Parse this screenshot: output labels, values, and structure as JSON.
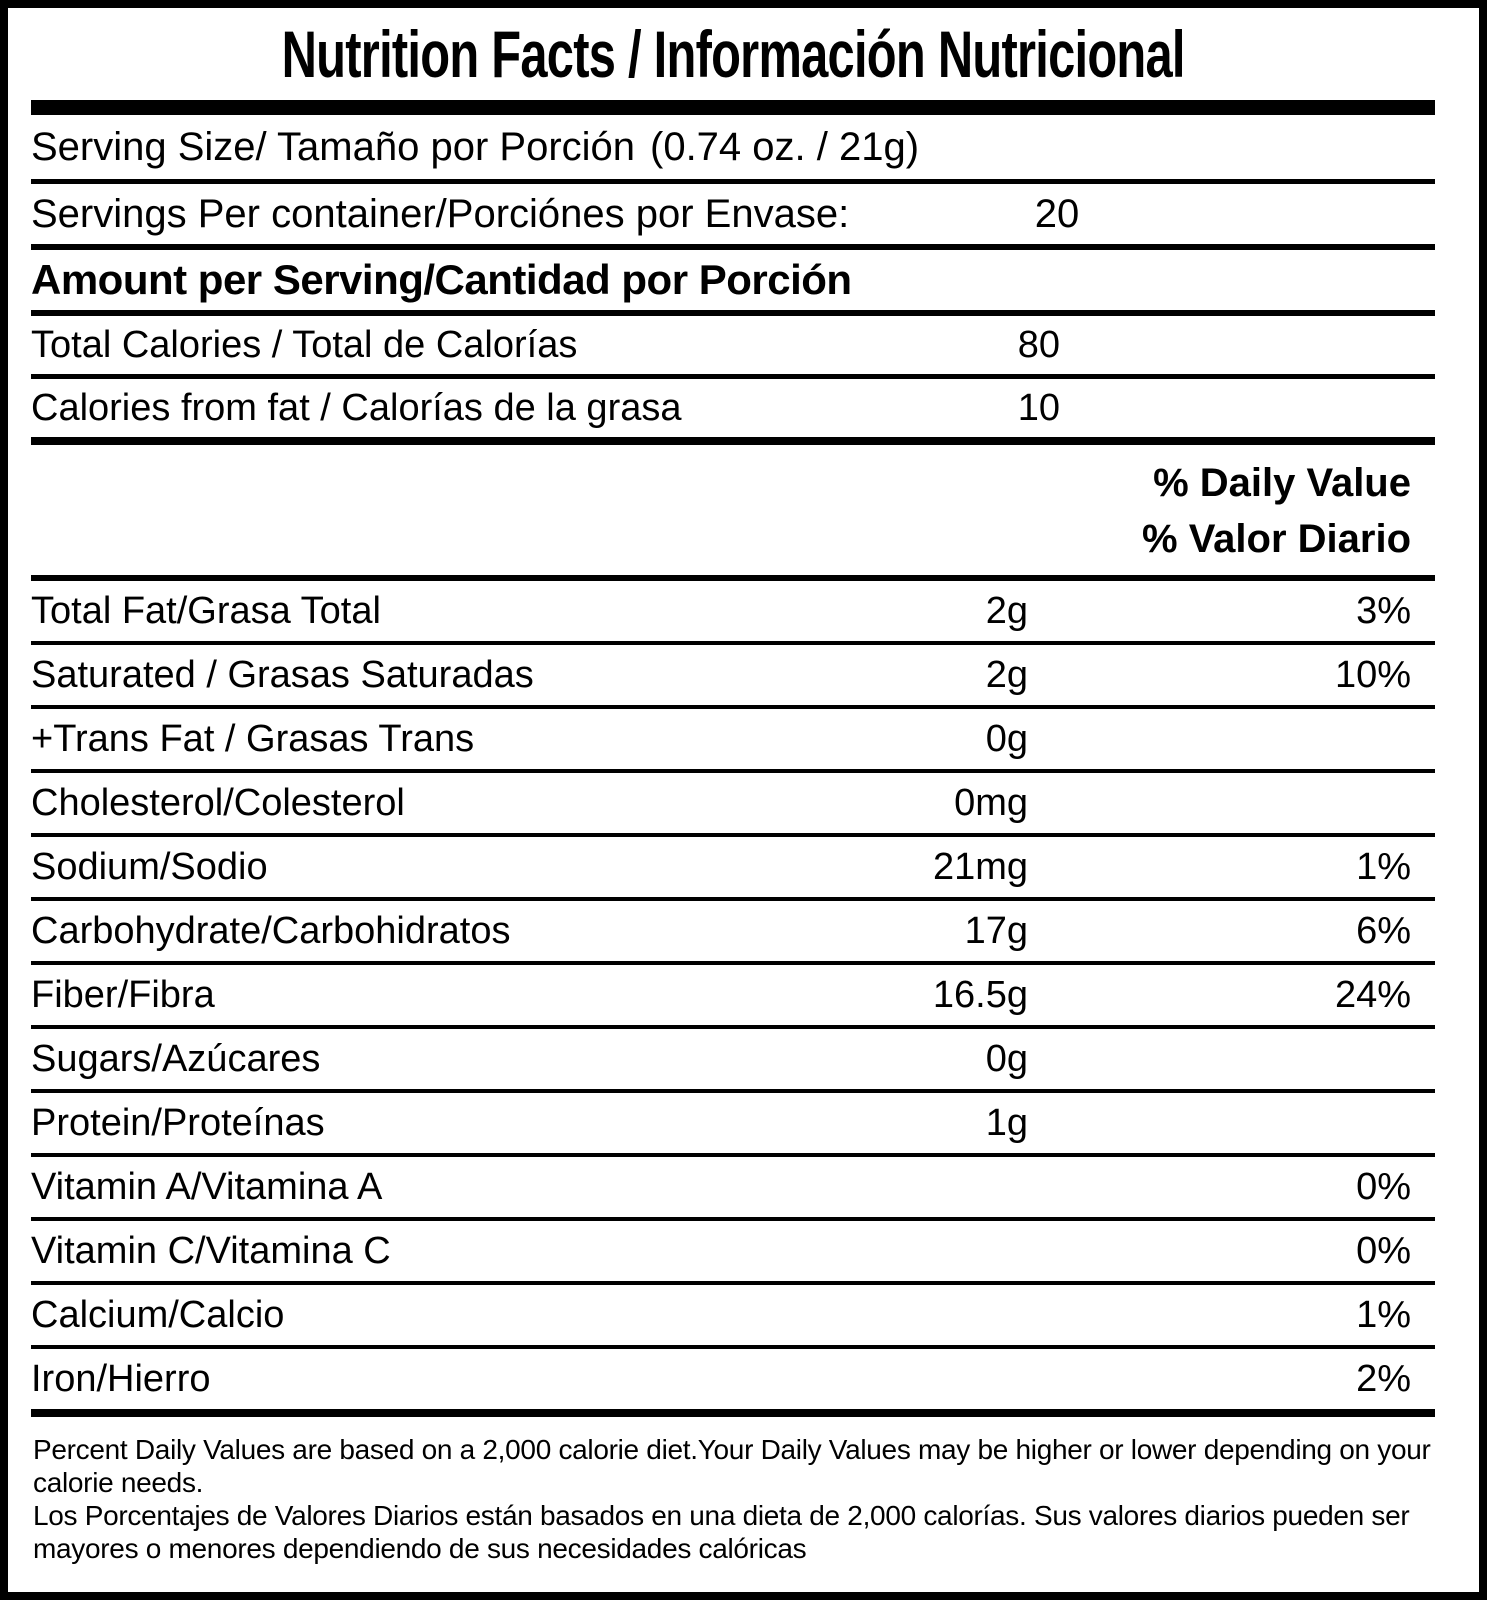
{
  "title": "Nutrition Facts / Información Nutricional",
  "serving_size": {
    "label": "Serving Size/ Tamaño por Porción",
    "value": "(0.74 oz. / 21g)"
  },
  "servings_per_container": {
    "label": "Servings Per container/Porciónes por Envase:",
    "value": "20"
  },
  "amount_header": "Amount per Serving/Cantidad por Porción",
  "calories_rows": [
    {
      "label": "Total Calories / Total de Calorías",
      "value": "80"
    },
    {
      "label": "Calories from fat / Calorías de la grasa",
      "value": "10"
    }
  ],
  "daily_value_header": {
    "en": "% Daily Value",
    "es": "% Valor Diario"
  },
  "nutrient_rows": [
    {
      "label": "Total Fat/Grasa Total",
      "value": "2g",
      "percent": "3%"
    },
    {
      "label": "Saturated / Grasas Saturadas",
      "value": "2g",
      "percent": "10%"
    },
    {
      "label": "+Trans Fat / Grasas Trans",
      "value": "0g",
      "percent": ""
    },
    {
      "label": "Cholesterol/Colesterol",
      "value": "0mg",
      "percent": ""
    },
    {
      "label": "Sodium/Sodio",
      "value": "21mg",
      "percent": "1%"
    },
    {
      "label": "Carbohydrate/Carbohidratos",
      "value": "17g",
      "percent": "6%"
    },
    {
      "label": "Fiber/Fibra",
      "value": "16.5g",
      "percent": "24%"
    },
    {
      "label": "Sugars/Azúcares",
      "value": "0g",
      "percent": ""
    },
    {
      "label": "Protein/Proteínas",
      "value": "1g",
      "percent": ""
    },
    {
      "label": "Vitamin A/Vitamina A",
      "value": "",
      "percent": "0%"
    },
    {
      "label": "Vitamin C/Vitamina C",
      "value": "",
      "percent": "0%"
    },
    {
      "label": "Calcium/Calcio",
      "value": "",
      "percent": "1%"
    },
    {
      "label": "Iron/Hierro",
      "value": "",
      "percent": "2%"
    }
  ],
  "footnote_lines": [
    "Percent Daily Values are based on a 2,000 calorie diet.Your Daily Values may be higher or lower depending on your",
    "calorie needs.",
    "Los Porcentajes de Valores Diarios están basados en una dieta de 2,000 calorías. Sus valores diarios pueden ser",
    "mayores o menores dependiendo de sus necesidades calóricas"
  ],
  "colors": {
    "foreground": "#000000",
    "background": "#ffffff"
  }
}
